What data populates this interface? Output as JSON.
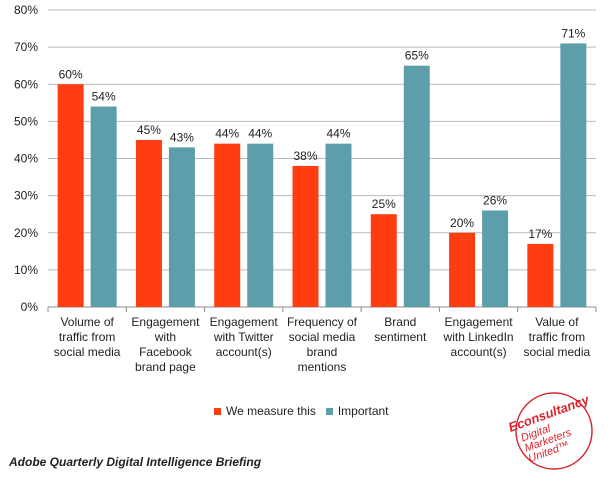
{
  "chart_data": {
    "type": "bar",
    "categories": [
      [
        "Volume of",
        "traffic from",
        "social media"
      ],
      [
        "Engagement",
        "with",
        "Facebook",
        "brand page"
      ],
      [
        "Engagement",
        "with Twitter",
        "account(s)"
      ],
      [
        "Frequency of",
        "social media",
        "brand",
        "mentions"
      ],
      [
        "Brand",
        "sentiment"
      ],
      [
        "Engagement",
        "with LinkedIn",
        "account(s)"
      ],
      [
        "Value of",
        "traffic from",
        "social media"
      ]
    ],
    "series": [
      {
        "name": "We measure this",
        "color": "#fe3d10",
        "values": [
          60,
          45,
          44,
          38,
          25,
          20,
          17
        ]
      },
      {
        "name": "Important",
        "color": "#5c9faa",
        "values": [
          54,
          43,
          44,
          44,
          65,
          26,
          71
        ]
      }
    ],
    "value_suffix": "%",
    "ylim": [
      0,
      80
    ],
    "yticks": [
      0,
      10,
      20,
      30,
      40,
      50,
      60,
      70,
      80
    ],
    "grid": true,
    "legend_position": "bottom"
  },
  "footer": {
    "text": "Adobe Quarterly Digital Intelligence Briefing"
  },
  "logo": {
    "lines": [
      "Econsultancy",
      "Digital",
      "Marketers",
      "United™"
    ],
    "color": "#d8262e"
  }
}
